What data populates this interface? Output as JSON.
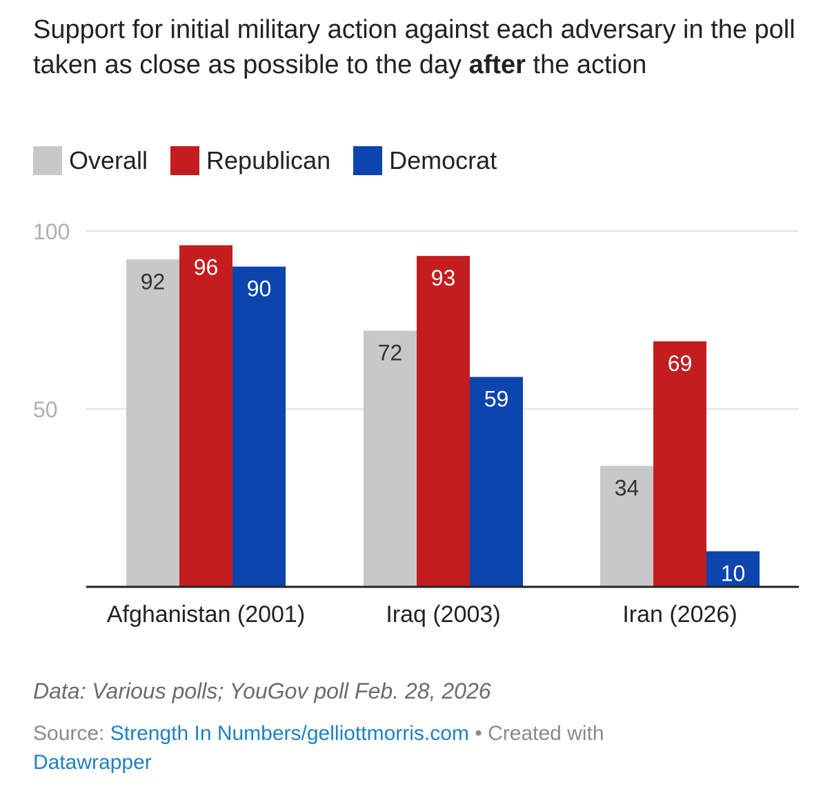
{
  "title": {
    "part1": "Support for initial military action against each adversary in the poll taken as close as possible to the day ",
    "bold": "after",
    "part2": " the action"
  },
  "chart_data": {
    "type": "bar",
    "categories": [
      "Afghanistan (2001)",
      "Iraq (2003)",
      "Iran (2026)"
    ],
    "series": [
      {
        "name": "Overall",
        "color": "#c8c8c8",
        "values": [
          92,
          72,
          34
        ]
      },
      {
        "name": "Republican",
        "color": "#c41d1f",
        "values": [
          96,
          93,
          69
        ]
      },
      {
        "name": "Democrat",
        "color": "#0b45ad",
        "values": [
          90,
          59,
          10
        ]
      }
    ],
    "yticks": [
      50,
      100
    ],
    "ylim": [
      0,
      100
    ],
    "grid": true,
    "legend_position": "top-left"
  },
  "footer": {
    "data_note": "Data: Various polls; YouGov poll Feb. 28, 2026",
    "source_prefix": "Source: ",
    "source_link": "Strength In Numbers/gelliottmorris.com",
    "created_prefix": " • Created with ",
    "created_link": "Datawrapper"
  }
}
